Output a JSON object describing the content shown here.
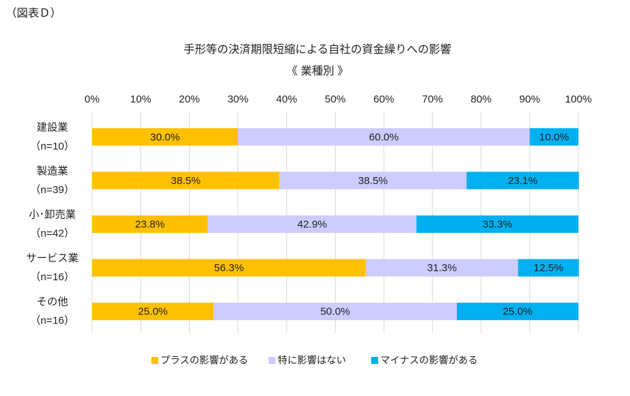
{
  "header": "（図表Ｄ）",
  "chart_data": {
    "type": "stacked-bar-horizontal",
    "title": "手形等の決済期限短縮による自社の資金繰りへの影響",
    "subtitle": "《 業種別 》",
    "categories": [
      [
        "建設業",
        "（n=10）"
      ],
      [
        "製造業",
        "（n=39）"
      ],
      [
        "小･卸売業",
        "（n=42）"
      ],
      [
        "サービス業",
        "（n=16）"
      ],
      [
        "その他",
        "（n=16）"
      ]
    ],
    "series": [
      {
        "name": "プラスの影響がある",
        "color": "#ffc000",
        "values": [
          30.0,
          38.5,
          23.8,
          56.3,
          25.0
        ],
        "value_labels": [
          "30.0%",
          "38.5%",
          "23.8%",
          "56.3%",
          "25.0%"
        ]
      },
      {
        "name": "特に影響はない",
        "color": "#ccccff",
        "values": [
          60.0,
          38.5,
          42.9,
          31.3,
          50.0
        ],
        "value_labels": [
          "60.0%",
          "38.5%",
          "42.9%",
          "31.3%",
          "50.0%"
        ]
      },
      {
        "name": "マイナスの影響がある",
        "color": "#00b0f0",
        "values": [
          10.0,
          23.1,
          33.3,
          12.5,
          25.0
        ],
        "value_labels": [
          "10.0%",
          "23.1%",
          "33.3%",
          "12.5%",
          "25.0%"
        ]
      }
    ],
    "xlim": [
      0,
      100
    ],
    "xticks": [
      {
        "value": 0,
        "label": "0%"
      },
      {
        "value": 10,
        "label": "10%"
      },
      {
        "value": 20,
        "label": "20%"
      },
      {
        "value": 30,
        "label": "30%"
      },
      {
        "value": 40,
        "label": "40%"
      },
      {
        "value": 50,
        "label": "50%"
      },
      {
        "value": 60,
        "label": "60%"
      },
      {
        "value": 70,
        "label": "70%"
      },
      {
        "value": 80,
        "label": "80%"
      },
      {
        "value": 90,
        "label": "90%"
      },
      {
        "value": 100,
        "label": "100%"
      }
    ],
    "grid": true,
    "legend": "bottom"
  }
}
